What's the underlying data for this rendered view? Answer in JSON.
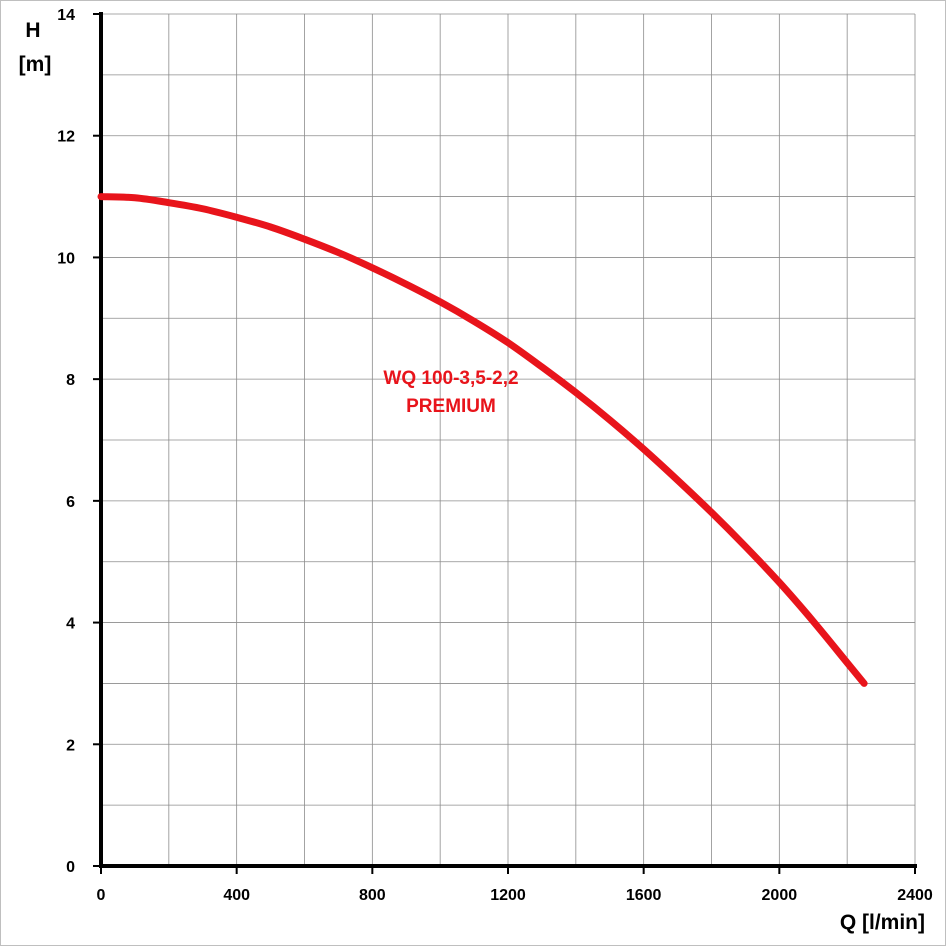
{
  "chart_data": {
    "type": "line",
    "title": "",
    "ylabel_line1": "H",
    "ylabel_line2": "[m]",
    "xlabel": "Q [l/min]",
    "xlim": [
      0,
      2400
    ],
    "ylim": [
      0,
      14
    ],
    "x_ticks": [
      "0",
      "400",
      "800",
      "1200",
      "1600",
      "2000",
      "2400"
    ],
    "y_ticks": [
      "0",
      "2",
      "4",
      "6",
      "8",
      "10",
      "12",
      "14"
    ],
    "minor_grid_x_step": 200,
    "minor_grid_y_step": 1,
    "grid": true,
    "series": [
      {
        "name": "WQ 100-3,5-2,2",
        "name_line2": "PREMIUM",
        "color": "#e8141b",
        "x": [
          0,
          100,
          200,
          300,
          400,
          500,
          600,
          700,
          800,
          900,
          1000,
          1100,
          1200,
          1300,
          1400,
          1500,
          1600,
          1700,
          1800,
          1900,
          2000,
          2100,
          2200,
          2250
        ],
        "y": [
          11.0,
          10.98,
          10.9,
          10.8,
          10.66,
          10.5,
          10.3,
          10.08,
          9.83,
          9.56,
          9.27,
          8.95,
          8.6,
          8.2,
          7.78,
          7.33,
          6.85,
          6.34,
          5.81,
          5.25,
          4.66,
          4.02,
          3.34,
          3.0
        ]
      }
    ]
  }
}
